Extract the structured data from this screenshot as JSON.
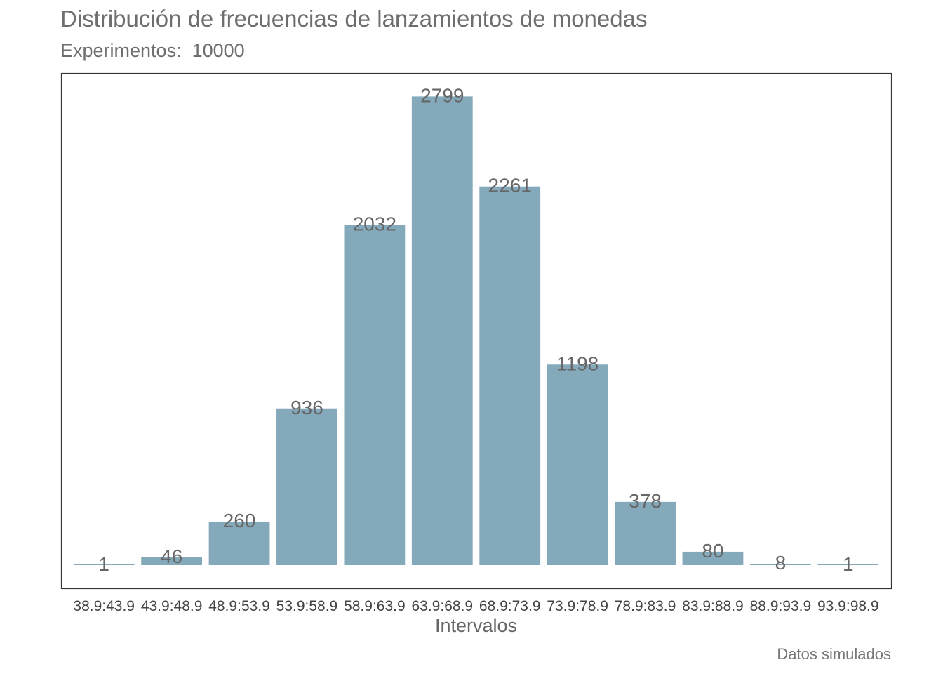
{
  "chart_data": {
    "type": "bar",
    "title": "Distribución de frecuencias de lanzamientos de monedas",
    "subtitle": "Experimentos:  10000",
    "xlabel": "Intervalos",
    "ylabel": "",
    "caption": "Datos simulados",
    "categories": [
      "38.9:43.9",
      "43.9:48.9",
      "48.9:53.9",
      "53.9:58.9",
      "58.9:63.9",
      "63.9:68.9",
      "68.9:73.9",
      "73.9:78.9",
      "78.9:83.9",
      "83.9:88.9",
      "88.9:93.9",
      "93.9:98.9"
    ],
    "values": [
      1,
      46,
      260,
      936,
      2032,
      2799,
      2261,
      1198,
      378,
      80,
      8,
      1
    ],
    "ylim": [
      0,
      2939
    ],
    "grid": false,
    "bar_color": "#84A9BB",
    "data_labels": true,
    "panel_border": true
  }
}
